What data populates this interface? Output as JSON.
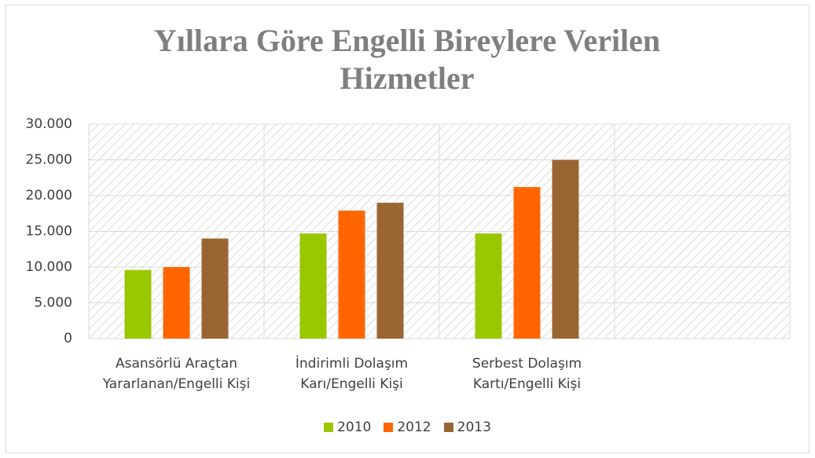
{
  "chart_data": {
    "type": "bar",
    "title": "Yıllara Göre Engelli Bireylere Verilen Hizmetler",
    "categories": [
      "Asansörlü Araçtan Yararlanan/Engelli Kişi",
      "İndirimli Dolaşım Karı/Engelli Kişi",
      "Serbest Dolaşım Kartı/Engelli Kişi",
      null
    ],
    "series": [
      {
        "name": "2010",
        "color": "#99c700",
        "values": [
          9600,
          14700,
          14700,
          null
        ]
      },
      {
        "name": "2012",
        "color": "#ff6600",
        "values": [
          10000,
          17900,
          21200,
          null
        ]
      },
      {
        "name": "2013",
        "color": "#996633",
        "values": [
          14000,
          19000,
          25000,
          null
        ]
      }
    ],
    "ylim": [
      0,
      30000
    ],
    "yticks": [
      0,
      {
        "value": 5000,
        "label": "5.000"
      },
      {
        "value": 10000,
        "label": "10.000"
      },
      {
        "value": 15000,
        "label": "15.000"
      },
      {
        "value": 20000,
        "label": "20.000"
      },
      {
        "value": 25000,
        "label": "25.000"
      },
      {
        "value": 30000,
        "label": "30.000"
      }
    ],
    "grid": true,
    "legend": "bottom"
  }
}
